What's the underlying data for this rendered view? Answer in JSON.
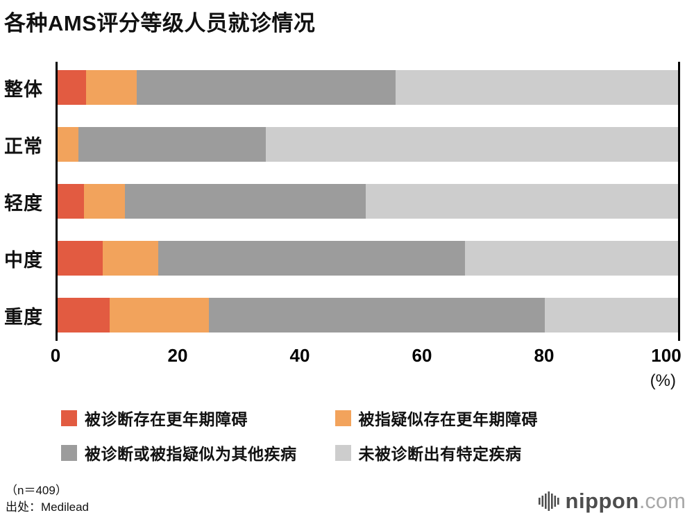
{
  "title": "各种AMS评分等级人员就诊情况",
  "chart_data": {
    "type": "bar",
    "orientation": "horizontal",
    "stacked": true,
    "grid": false,
    "categories": [
      "整体",
      "正常",
      "轻度",
      "中度",
      "重度"
    ],
    "series": [
      {
        "name": "被诊断存在更年期障碍",
        "color": "#e25b41",
        "values": [
          4.9,
          0,
          4.6,
          7.6,
          8.7
        ]
      },
      {
        "name": "被指疑似存在更年期障碍",
        "color": "#f2a35c",
        "values": [
          8.1,
          3.7,
          6.5,
          8.8,
          15.9
        ]
      },
      {
        "name": "被诊断或被指疑似为其他疾病",
        "color": "#9c9c9c",
        "values": [
          41.5,
          30.0,
          38.6,
          49.2,
          53.7
        ]
      },
      {
        "name": "未被诊断出有特定疾病",
        "color": "#cdcdcd",
        "values": [
          45.5,
          66.3,
          50.3,
          34.4,
          21.7
        ]
      }
    ],
    "xlim": [
      0,
      100
    ],
    "x_ticks": [
      0,
      20,
      40,
      60,
      80,
      100
    ],
    "x_unit": "(%)",
    "legend_position": "bottom"
  },
  "footer": {
    "sample": "（n＝409）",
    "source": "出处：Medilead"
  },
  "logo": {
    "name": "nippon",
    "tld": ".com"
  }
}
